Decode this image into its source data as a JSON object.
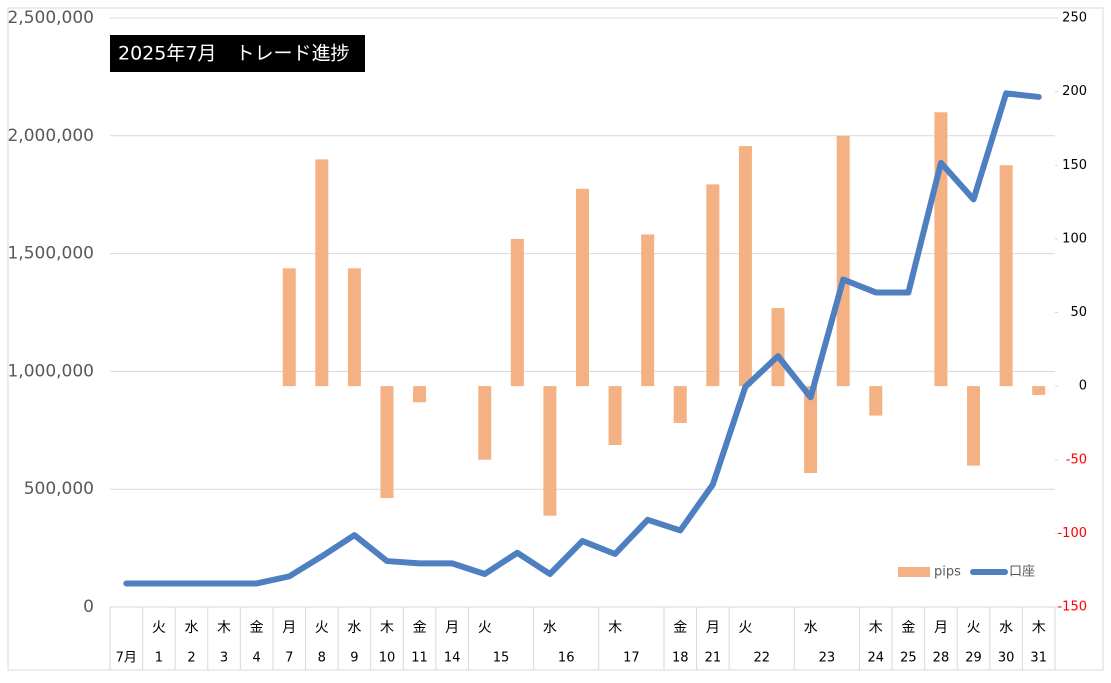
{
  "chart_data": {
    "type": "bar_line",
    "title": "2025年7月　トレード進捗",
    "categories": [
      "7月",
      "1",
      "2",
      "3",
      "4",
      "7",
      "8",
      "9",
      "10",
      "11",
      "14",
      "15",
      null,
      "16",
      null,
      "17",
      null,
      "18",
      "21",
      "22",
      null,
      "23",
      null,
      "24",
      "25",
      "28",
      "29",
      "30",
      "31"
    ],
    "weekdays": [
      null,
      "火",
      "水",
      "木",
      "金",
      "月",
      "火",
      "水",
      "木",
      "金",
      "月",
      "火",
      null,
      "水",
      null,
      "木",
      null,
      "金",
      "月",
      "火",
      null,
      "水",
      null,
      "木",
      "金",
      "月",
      "火",
      "水",
      "木"
    ],
    "series": [
      {
        "name": "pips",
        "type": "bar",
        "axis": "y2",
        "color": "#f4b183",
        "values": [
          null,
          null,
          null,
          null,
          null,
          80,
          154,
          80,
          -76,
          -11,
          null,
          -50,
          100,
          -88,
          134,
          -40,
          103,
          -25,
          137,
          163,
          53,
          -59,
          170,
          -20,
          null,
          186,
          -54,
          150,
          -6
        ]
      },
      {
        "name": "口座",
        "type": "line",
        "color": "#4e7fc0",
        "values": [
          100000,
          100000,
          100000,
          100000,
          100000,
          130000,
          215000,
          305000,
          195000,
          185000,
          185000,
          140000,
          230000,
          140000,
          280000,
          225000,
          370000,
          325000,
          520000,
          935000,
          1065000,
          890000,
          1390000,
          1335000,
          1335000,
          1885000,
          1730000,
          2180000,
          2165000
        ]
      }
    ],
    "ylim": [
      0,
      2500000
    ],
    "yticks": [
      0,
      {
        "value": 500000,
        "label": "500,000"
      },
      {
        "value": 1000000,
        "label": "1,000,000"
      },
      {
        "value": 1500000,
        "label": "1,500,000"
      },
      {
        "value": 2000000,
        "label": "2,000,000"
      },
      {
        "value": 2500000,
        "label": "2,500,000"
      }
    ],
    "y2lim": [
      -150,
      250
    ],
    "y2ticks": [
      -150,
      -100,
      -50,
      0,
      50,
      100,
      150,
      200,
      250
    ],
    "y2_negative_tick_color": "#ff0000",
    "grid": true,
    "legend": "bottom-right"
  }
}
